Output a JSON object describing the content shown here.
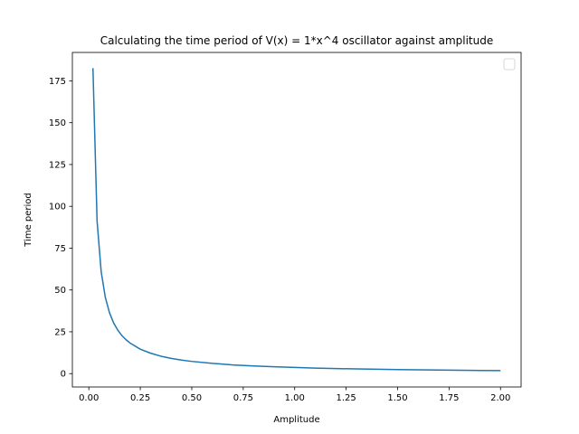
{
  "chart_data": {
    "type": "line",
    "title": "Calculating the time period of V(x) = 1*x^4 oscillator against amplitude",
    "xlabel": "Amplitude",
    "ylabel": "Time period",
    "xlim": [
      -0.08,
      2.1
    ],
    "ylim": [
      -8,
      192
    ],
    "xticks": [
      0.0,
      0.25,
      0.5,
      0.75,
      1.0,
      1.25,
      1.5,
      1.75,
      2.0
    ],
    "xtick_labels": [
      "0.00",
      "0.25",
      "0.50",
      "0.75",
      "1.00",
      "1.25",
      "1.50",
      "1.75",
      "2.00"
    ],
    "yticks": [
      0,
      25,
      50,
      75,
      100,
      125,
      150,
      175
    ],
    "ytick_labels": [
      "0",
      "25",
      "50",
      "75",
      "100",
      "125",
      "150",
      "175"
    ],
    "grid": false,
    "legend": {
      "placement": "upper right",
      "entries": []
    },
    "line_color": "#1f77b4",
    "series": [
      {
        "x": [
          0.02,
          0.04,
          0.06,
          0.08,
          0.1,
          0.12,
          0.14,
          0.16,
          0.18,
          0.2,
          0.25,
          0.3,
          0.35,
          0.4,
          0.45,
          0.5,
          0.6,
          0.7,
          0.8,
          0.9,
          1.0,
          1.1,
          1.2,
          1.3,
          1.4,
          1.5,
          1.6,
          1.7,
          1.8,
          1.9,
          2.0
        ],
        "y": [
          182.6,
          91.3,
          60.9,
          45.6,
          36.5,
          30.4,
          26.1,
          22.8,
          20.3,
          18.3,
          14.6,
          12.2,
          10.4,
          9.1,
          8.1,
          7.3,
          6.1,
          5.2,
          4.6,
          4.1,
          3.7,
          3.3,
          3.0,
          2.8,
          2.6,
          2.4,
          2.3,
          2.1,
          2.0,
          1.9,
          1.8
        ]
      }
    ]
  }
}
